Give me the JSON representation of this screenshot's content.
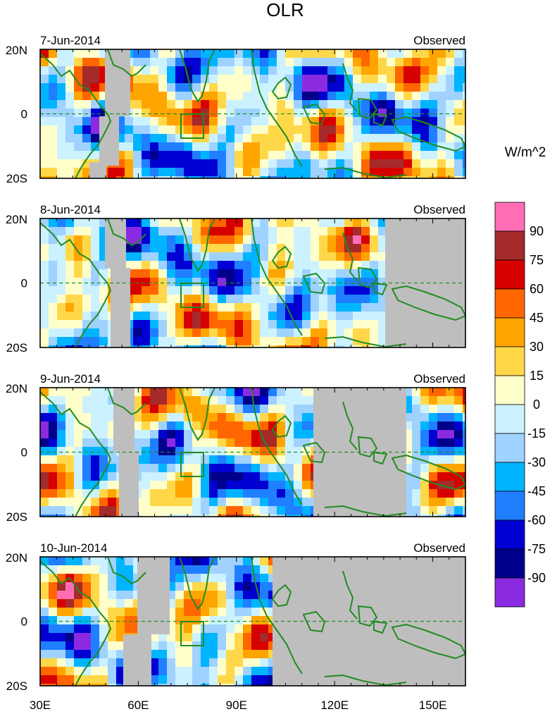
{
  "title": "OLR",
  "units_label": "W/m^2",
  "panels": [
    {
      "date": "7-Jun-2014",
      "label": "Observed"
    },
    {
      "date": "8-Jun-2014",
      "label": "Observed"
    },
    {
      "date": "9-Jun-2014",
      "label": "Observed"
    },
    {
      "date": "10-Jun-2014",
      "label": "Observed"
    }
  ],
  "lat_labels": [
    "20N",
    "0",
    "20S"
  ],
  "lon_labels": [
    "30E",
    "60E",
    "90E",
    "120E",
    "150E"
  ],
  "colorbar": {
    "labels": [
      "90",
      "75",
      "60",
      "45",
      "30",
      "15",
      "0",
      "-15",
      "-30",
      "-45",
      "-60",
      "-75",
      "-90"
    ],
    "colors": [
      "#ff6eb4",
      "#a52a2a",
      "#d70000",
      "#ff6600",
      "#ffa500",
      "#ffd84a",
      "#ffffcc",
      "#ccf2ff",
      "#9fd2ff",
      "#00b4ff",
      "#1f7fff",
      "#0000d2",
      "#00008b",
      "#8a2be2"
    ]
  },
  "missing_color": "#bebebe",
  "coast_color": "#228b22"
}
